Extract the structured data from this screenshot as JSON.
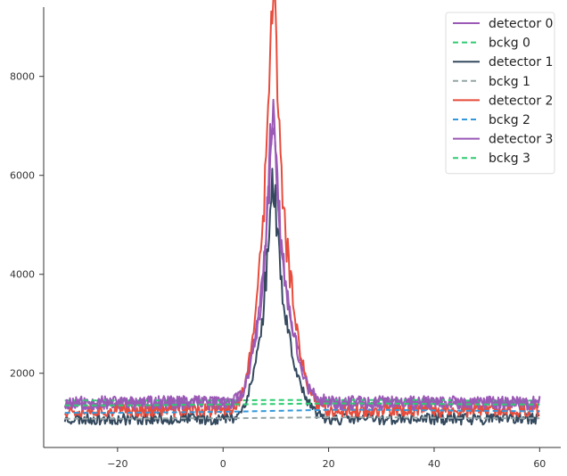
{
  "chart_data": {
    "type": "line",
    "title": "",
    "xlabel": "",
    "ylabel": "",
    "xlim": [
      -34,
      64
    ],
    "ylim": [
      500,
      9400
    ],
    "x_ticks": [
      -20,
      0,
      20,
      40,
      60
    ],
    "x_tick_labels": [
      "−20",
      "0",
      "20",
      "40",
      "60"
    ],
    "y_ticks": [
      2000,
      4000,
      6000,
      8000
    ],
    "y_tick_labels": [
      "2000",
      "4000",
      "6000",
      "8000"
    ],
    "grid": false,
    "legend_position": "top-right",
    "x_range": [
      -30,
      60
    ],
    "peak_x": 9.5,
    "series": [
      {
        "name": "detector 0",
        "kind": "signal",
        "color": "#9b59b6",
        "dashed": false,
        "base": 1400,
        "noise": 280,
        "peak": 5600,
        "seed": 11
      },
      {
        "name": "bckg 0",
        "kind": "background",
        "color": "#2ecc71",
        "dashed": true,
        "values": [
          1450,
          1450,
          1450,
          1450,
          1460,
          1460,
          1460,
          1460,
          1440,
          1450
        ]
      },
      {
        "name": "detector 1",
        "kind": "signal",
        "color": "#34495e",
        "dashed": false,
        "base": 1080,
        "noise": 240,
        "peak": 4700,
        "seed": 23
      },
      {
        "name": "bckg 1",
        "kind": "background",
        "color": "#95a5a6",
        "dashed": true,
        "values": [
          1080,
          1080,
          1090,
          1090,
          1100,
          1110,
          1110,
          1100,
          1090,
          1090
        ]
      },
      {
        "name": "detector 2",
        "kind": "signal",
        "color": "#e74c3c",
        "dashed": false,
        "base": 1250,
        "noise": 260,
        "peak": 8100,
        "seed": 37
      },
      {
        "name": "bckg 2",
        "kind": "background",
        "color": "#3498db",
        "dashed": true,
        "values": [
          1200,
          1200,
          1210,
          1220,
          1240,
          1260,
          1260,
          1250,
          1240,
          1230
        ]
      },
      {
        "name": "detector 3",
        "kind": "signal",
        "color": "#9b59b6",
        "dashed": false,
        "base": 1400,
        "noise": 280,
        "peak": 5300,
        "seed": 53
      },
      {
        "name": "bckg 3",
        "kind": "background",
        "color": "#2ecc71",
        "dashed": true,
        "values": [
          1350,
          1350,
          1360,
          1370,
          1380,
          1390,
          1390,
          1380,
          1370,
          1370
        ]
      }
    ]
  }
}
